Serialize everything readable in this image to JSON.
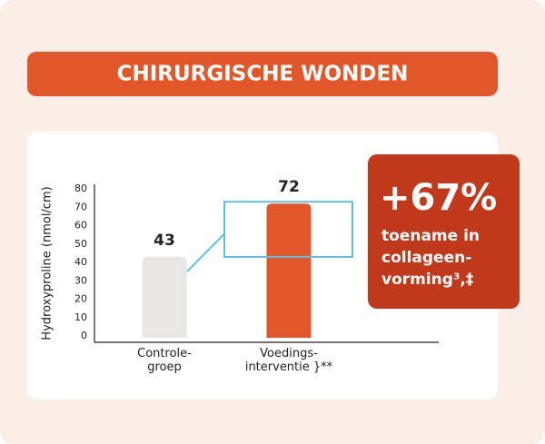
{
  "chart_data": {
    "type": "bar",
    "title": "CHIRURGISCHE WONDEN",
    "y_label": "Hydroxyproline (nmol/cm)",
    "categories": [
      "Controle-\ngroep",
      "Voedings-\ninterventie }**"
    ],
    "values": [
      43,
      72
    ],
    "colors": [
      "#e8e7e5",
      "#e2572a"
    ],
    "ylim": [
      0,
      80
    ],
    "yticks": [
      0,
      10,
      20,
      30,
      40,
      50,
      60,
      70,
      80
    ],
    "grid": false,
    "callout_value": "+67%",
    "callout_text": "toename in\ncollageen-\nvorming³,‡"
  }
}
